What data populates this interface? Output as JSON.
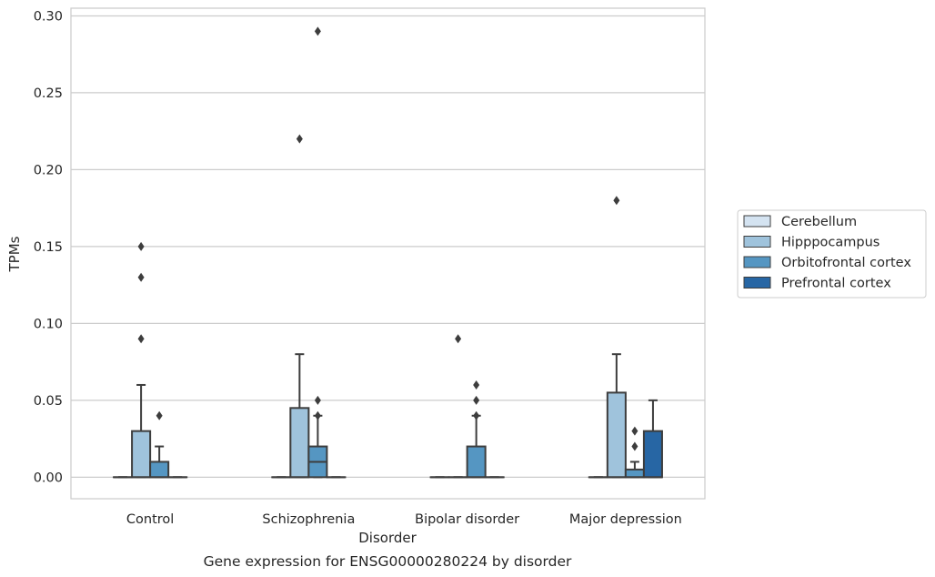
{
  "chart_data": {
    "type": "box",
    "caption": "Gene expression for ENSG00000280224 by disorder",
    "xlabel": "Disorder",
    "ylabel": "TPMs",
    "ylim": [
      -0.014,
      0.305
    ],
    "yticks": [
      0.0,
      0.05,
      0.1,
      0.15,
      0.2,
      0.25,
      0.3
    ],
    "ytick_labels": [
      "0.00",
      "0.05",
      "0.10",
      "0.15",
      "0.20",
      "0.25",
      "0.30"
    ],
    "grid": "horizontal",
    "legend_position": "right",
    "categories": [
      "Control",
      "Schizophrenia",
      "Bipolar disorder",
      "Major depression"
    ],
    "series": [
      {
        "name": "Cerebellum",
        "color": "#d4e3f1",
        "boxes": [
          {
            "category": "Control",
            "q1": 0,
            "median": 0,
            "q3": 0,
            "whisker_low": 0,
            "whisker_high": 0,
            "outliers": []
          },
          {
            "category": "Schizophrenia",
            "q1": 0,
            "median": 0,
            "q3": 0,
            "whisker_low": 0,
            "whisker_high": 0,
            "outliers": []
          },
          {
            "category": "Bipolar disorder",
            "q1": 0,
            "median": 0,
            "q3": 0,
            "whisker_low": 0,
            "whisker_high": 0,
            "outliers": []
          },
          {
            "category": "Major depression",
            "q1": 0,
            "median": 0,
            "q3": 0,
            "whisker_low": 0,
            "whisker_high": 0,
            "outliers": []
          }
        ]
      },
      {
        "name": "Hipppocampus",
        "color": "#9fc3dc",
        "boxes": [
          {
            "category": "Control",
            "q1": 0,
            "median": 0,
            "q3": 0.03,
            "whisker_low": 0,
            "whisker_high": 0.06,
            "outliers": [
              0.09,
              0.13,
              0.15
            ]
          },
          {
            "category": "Schizophrenia",
            "q1": 0,
            "median": 0,
            "q3": 0.045,
            "whisker_low": 0,
            "whisker_high": 0.08,
            "outliers": [
              0.22
            ]
          },
          {
            "category": "Bipolar disorder",
            "q1": 0,
            "median": 0,
            "q3": 0,
            "whisker_low": 0,
            "whisker_high": 0,
            "outliers": [
              0.09
            ]
          },
          {
            "category": "Major depression",
            "q1": 0,
            "median": 0,
            "q3": 0.055,
            "whisker_low": 0,
            "whisker_high": 0.08,
            "outliers": [
              0.18
            ]
          }
        ]
      },
      {
        "name": "Orbitofrontal cortex",
        "color": "#5596c2",
        "boxes": [
          {
            "category": "Control",
            "q1": 0,
            "median": 0,
            "q3": 0.01,
            "whisker_low": 0,
            "whisker_high": 0.02,
            "outliers": [
              0.04
            ]
          },
          {
            "category": "Schizophrenia",
            "q1": 0,
            "median": 0.01,
            "q3": 0.02,
            "whisker_low": 0,
            "whisker_high": 0.04,
            "outliers": [
              0.04,
              0.05,
              0.29
            ]
          },
          {
            "category": "Bipolar disorder",
            "q1": 0,
            "median": 0,
            "q3": 0.02,
            "whisker_low": 0,
            "whisker_high": 0.04,
            "outliers": [
              0.04,
              0.05,
              0.06
            ]
          },
          {
            "category": "Major depression",
            "q1": 0,
            "median": 0,
            "q3": 0.005,
            "whisker_low": 0,
            "whisker_high": 0.01,
            "outliers": [
              0.02,
              0.03
            ]
          }
        ]
      },
      {
        "name": "Prefrontal cortex",
        "color": "#2766a4",
        "boxes": [
          {
            "category": "Control",
            "q1": 0,
            "median": 0,
            "q3": 0,
            "whisker_low": 0,
            "whisker_high": 0,
            "outliers": []
          },
          {
            "category": "Schizophrenia",
            "q1": 0,
            "median": 0,
            "q3": 0,
            "whisker_low": 0,
            "whisker_high": 0,
            "outliers": []
          },
          {
            "category": "Bipolar disorder",
            "q1": 0,
            "median": 0,
            "q3": 0,
            "whisker_low": 0,
            "whisker_high": 0,
            "outliers": []
          },
          {
            "category": "Major depression",
            "q1": 0,
            "median": 0,
            "q3": 0.03,
            "whisker_low": 0,
            "whisker_high": 0.05,
            "outliers": []
          }
        ]
      }
    ]
  }
}
